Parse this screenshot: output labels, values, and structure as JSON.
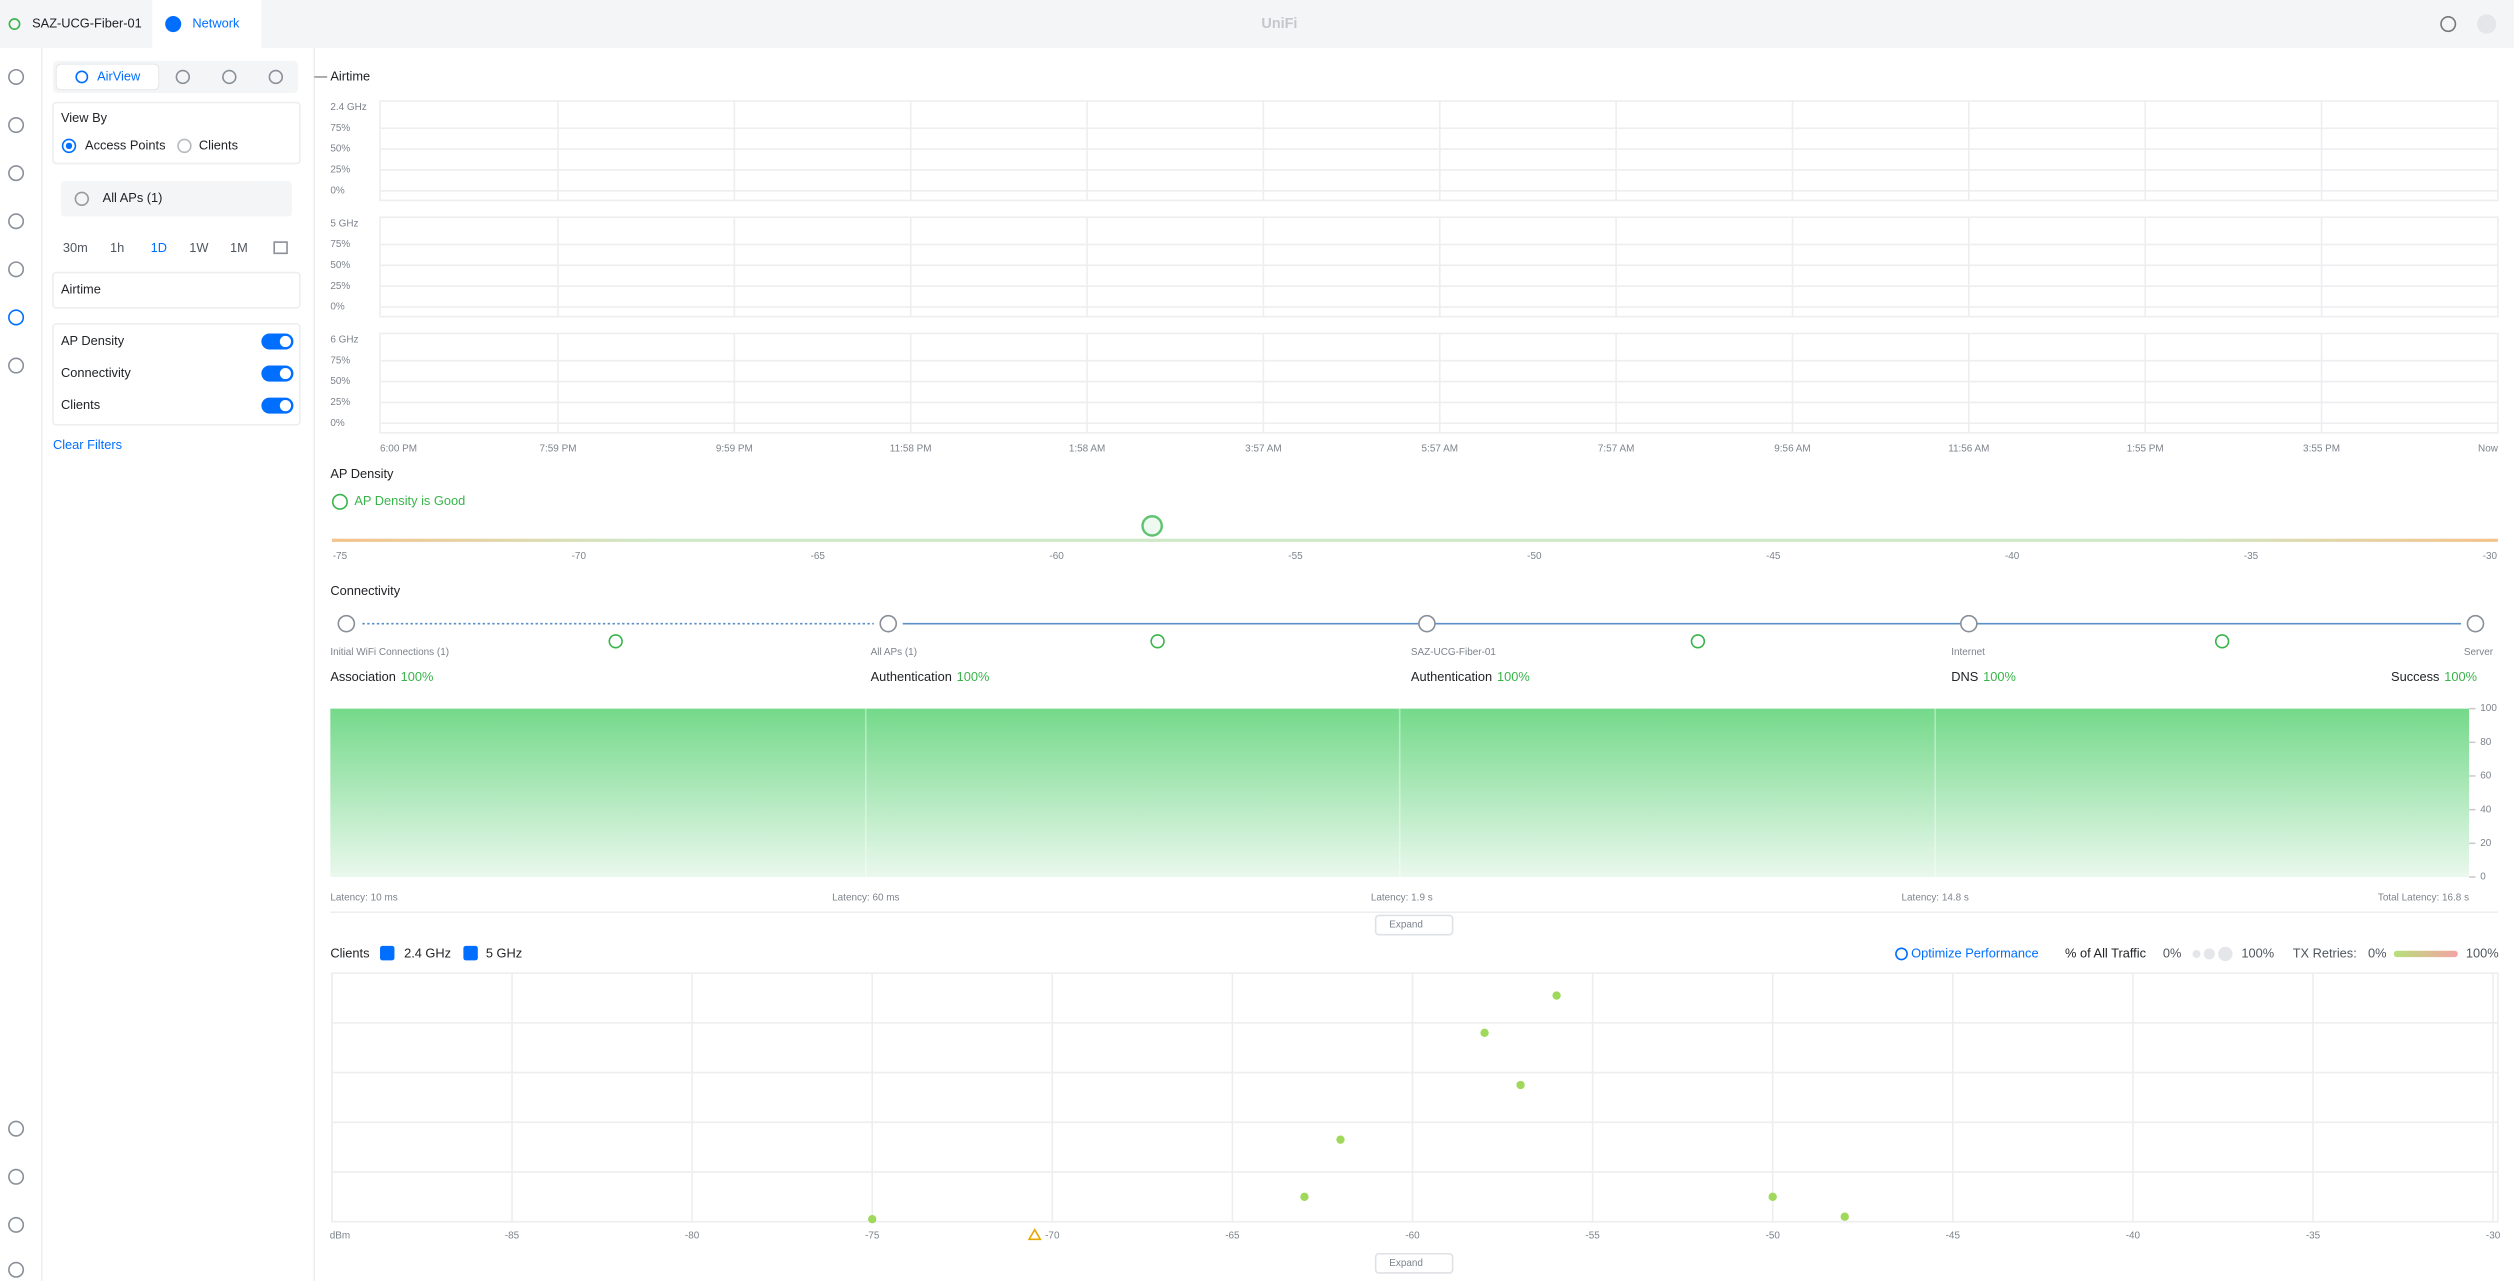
{
  "topbar": {
    "site": "SAZ-UCG-Fiber-01",
    "app": "Network",
    "brand": "UniFi"
  },
  "sidebar": {
    "tab": "AirView",
    "view_by": {
      "title": "View By",
      "options": [
        "Access Points",
        "Clients"
      ]
    },
    "ap_select": "All APs (1)",
    "ranges": [
      "30m",
      "1h",
      "1D",
      "1W",
      "1M"
    ],
    "section": "Airtime",
    "toggles": [
      "AP Density",
      "Connectivity",
      "Clients"
    ],
    "clear": "Clear Filters"
  },
  "airtime": {
    "title": "Airtime",
    "bands": [
      "2.4 GHz",
      "5 GHz",
      "6 GHz"
    ],
    "yticks": [
      "75%",
      "50%",
      "25%",
      "0%"
    ],
    "xticks": [
      "6:00 PM",
      "7:59 PM",
      "9:59 PM",
      "11:58 PM",
      "1:58 AM",
      "3:57 AM",
      "5:57 AM",
      "7:57 AM",
      "9:56 AM",
      "11:56 AM",
      "1:55 PM",
      "3:55 PM",
      "Now"
    ]
  },
  "ap_density": {
    "title": "AP Density",
    "status": "AP Density is Good",
    "ticks": [
      -75,
      -70,
      -65,
      -60,
      -55,
      -50,
      -45,
      -40,
      -35,
      -30
    ],
    "marker": -58
  },
  "connectivity": {
    "title": "Connectivity",
    "nodes": [
      "Initial WiFi Connections (1)",
      "All APs (1)",
      "SAZ-UCG-Fiber-01",
      "Internet",
      "Server"
    ],
    "metrics": [
      {
        "name": "Association",
        "value": "100%"
      },
      {
        "name": "Authentication",
        "value": "100%"
      },
      {
        "name": "Authentication",
        "value": "100%"
      },
      {
        "name": "DNS",
        "value": "100%"
      },
      {
        "name": "Success",
        "value": "100%"
      }
    ],
    "ylim": [
      0,
      100
    ],
    "yticks": [
      100,
      80,
      60,
      40,
      20,
      0
    ],
    "success": 100,
    "latencies": [
      "Latency: 10 ms",
      "Latency: 60 ms",
      "Latency: 1.9 s",
      "Latency: 14.8 s",
      "Total Latency: 16.8 s"
    ],
    "expand": "Expand"
  },
  "clients": {
    "title": "Clients",
    "bands": [
      "2.4 GHz",
      "5 GHz"
    ],
    "optimize": "Optimize Performance",
    "traffic": {
      "label": "% of All Traffic",
      "min": "0%",
      "max": "100%"
    },
    "retries": {
      "label": "TX Retries:",
      "min": "0%",
      "max": "100%"
    },
    "xlim": [
      -90,
      -30
    ],
    "xticks": [
      {
        "value": -90,
        "label": "dBm"
      },
      -85,
      -80,
      -75,
      -70,
      -65,
      -60,
      -55,
      -50,
      -45,
      -40,
      -35,
      -30
    ],
    "ylim": [
      0,
      5
    ],
    "points": {
      "x": [
        -56,
        -58,
        -57,
        -62,
        -63,
        -75,
        -50,
        -48
      ],
      "y": [
        4.55,
        3.8,
        2.75,
        1.65,
        0.5,
        0.05,
        0.5,
        0.1
      ]
    },
    "expand": "Expand"
  }
}
